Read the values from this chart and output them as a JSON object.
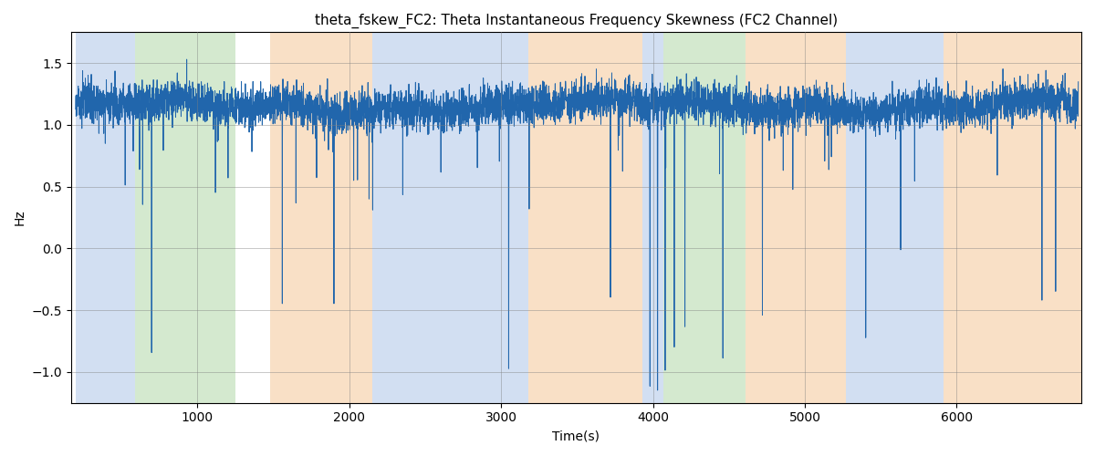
{
  "title": "theta_fskew_FC2: Theta Instantaneous Frequency Skewness (FC2 Channel)",
  "xlabel": "Time(s)",
  "ylabel": "Hz",
  "xlim": [
    170,
    6820
  ],
  "ylim": [
    -1.25,
    1.75
  ],
  "yticks": [
    -1.0,
    -0.5,
    0.0,
    0.5,
    1.0,
    1.5
  ],
  "xticks": [
    1000,
    2000,
    3000,
    4000,
    5000,
    6000
  ],
  "line_color": "#2166ac",
  "line_width": 0.7,
  "bg_regions": [
    {
      "xmin": 200,
      "xmax": 590,
      "color": "#aec6e8",
      "alpha": 0.55
    },
    {
      "xmin": 590,
      "xmax": 1250,
      "color": "#b2d8a8",
      "alpha": 0.55
    },
    {
      "xmin": 1480,
      "xmax": 2150,
      "color": "#f5c897",
      "alpha": 0.55
    },
    {
      "xmin": 2150,
      "xmax": 3180,
      "color": "#aec6e8",
      "alpha": 0.55
    },
    {
      "xmin": 3180,
      "xmax": 3930,
      "color": "#f5c897",
      "alpha": 0.55
    },
    {
      "xmin": 3930,
      "xmax": 4070,
      "color": "#aec6e8",
      "alpha": 0.55
    },
    {
      "xmin": 4070,
      "xmax": 4610,
      "color": "#b2d8a8",
      "alpha": 0.55
    },
    {
      "xmin": 4610,
      "xmax": 5270,
      "color": "#f5c897",
      "alpha": 0.55
    },
    {
      "xmin": 5270,
      "xmax": 5910,
      "color": "#aec6e8",
      "alpha": 0.55
    },
    {
      "xmin": 5910,
      "xmax": 6820,
      "color": "#f5c897",
      "alpha": 0.55
    }
  ],
  "figsize": [
    12,
    5
  ],
  "dpi": 100
}
